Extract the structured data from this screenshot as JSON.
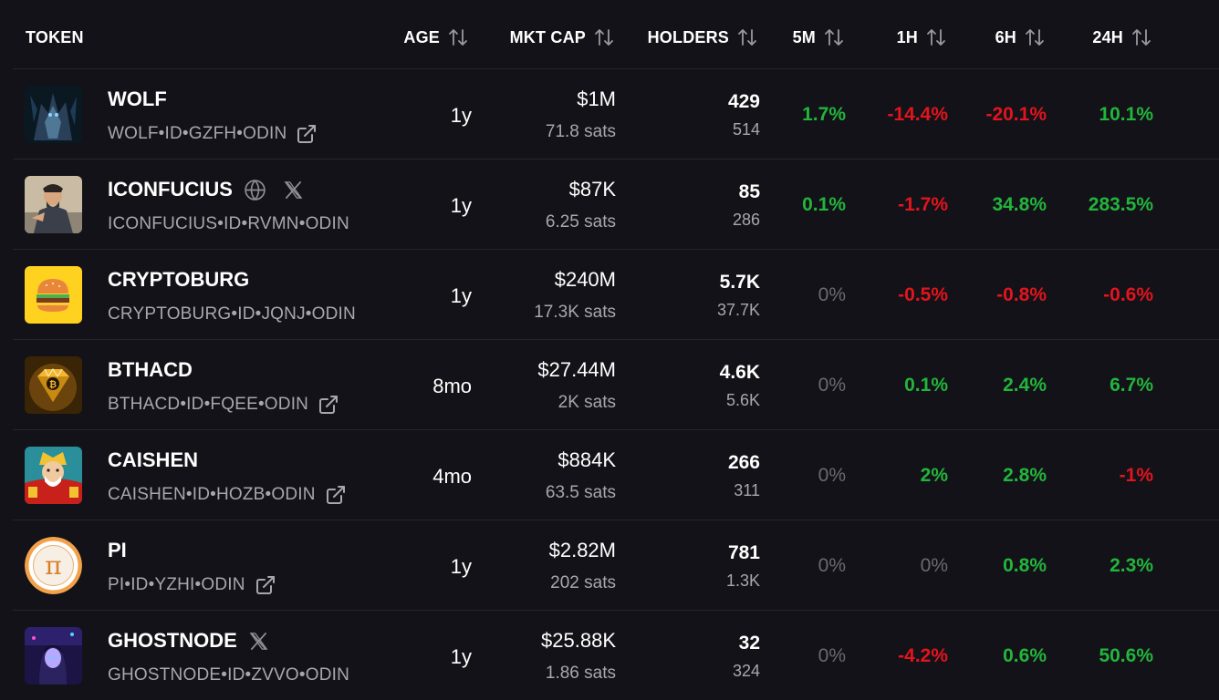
{
  "columns": {
    "token": "TOKEN",
    "age": "AGE",
    "mkt_cap": "MKT CAP",
    "holders": "HOLDERS",
    "m5": "5M",
    "h1": "1H",
    "h6": "6H",
    "h24": "24H"
  },
  "colors": {
    "positive": "#22b53c",
    "negative": "#e2141d",
    "neutral": "#6b6a73",
    "background": "#131218"
  },
  "rows": [
    {
      "name": "WOLF",
      "ticker": "WOLF•ID•GZFH•ODIN",
      "age": "1y",
      "mkt_cap": "$1M",
      "sats": "71.8 sats",
      "holders": "429",
      "holders_sub": "514",
      "m5": "1.7%",
      "h1": "-14.4%",
      "h6": "-20.1%",
      "h24": "10.1%"
    },
    {
      "name": "ICONFUCIUS",
      "ticker": "ICONFUCIUS•ID•RVMN•ODIN",
      "age": "1y",
      "mkt_cap": "$87K",
      "sats": "6.25 sats",
      "holders": "85",
      "holders_sub": "286",
      "m5": "0.1%",
      "h1": "-1.7%",
      "h6": "34.8%",
      "h24": "283.5%"
    },
    {
      "name": "CRYPTOBURG",
      "ticker": "CRYPTOBURG•ID•JQNJ•ODIN",
      "age": "1y",
      "mkt_cap": "$240M",
      "sats": "17.3K sats",
      "holders": "5.7K",
      "holders_sub": "37.7K",
      "m5": "0%",
      "h1": "-0.5%",
      "h6": "-0.8%",
      "h24": "-0.6%"
    },
    {
      "name": "BTHACD",
      "ticker": "BTHACD•ID•FQEE•ODIN",
      "age": "8mo",
      "mkt_cap": "$27.44M",
      "sats": "2K sats",
      "holders": "4.6K",
      "holders_sub": "5.6K",
      "m5": "0%",
      "h1": "0.1%",
      "h6": "2.4%",
      "h24": "6.7%"
    },
    {
      "name": "CAISHEN",
      "ticker": "CAISHEN•ID•HOZB•ODIN",
      "age": "4mo",
      "mkt_cap": "$884K",
      "sats": "63.5 sats",
      "holders": "266",
      "holders_sub": "311",
      "m5": "0%",
      "h1": "2%",
      "h6": "2.8%",
      "h24": "-1%"
    },
    {
      "name": "PI",
      "ticker": "PI•ID•YZHI•ODIN",
      "age": "1y",
      "mkt_cap": "$2.82M",
      "sats": "202 sats",
      "holders": "781",
      "holders_sub": "1.3K",
      "m5": "0%",
      "h1": "0%",
      "h6": "0.8%",
      "h24": "2.3%"
    },
    {
      "name": "GHOSTNODE",
      "ticker": "GHOSTNODE•ID•ZVVO•ODIN",
      "age": "1y",
      "mkt_cap": "$25.88K",
      "sats": "1.86 sats",
      "holders": "32",
      "holders_sub": "324",
      "m5": "0%",
      "h1": "-4.2%",
      "h6": "0.6%",
      "h24": "50.6%"
    }
  ],
  "icons": {
    "logo_pi": "π"
  }
}
